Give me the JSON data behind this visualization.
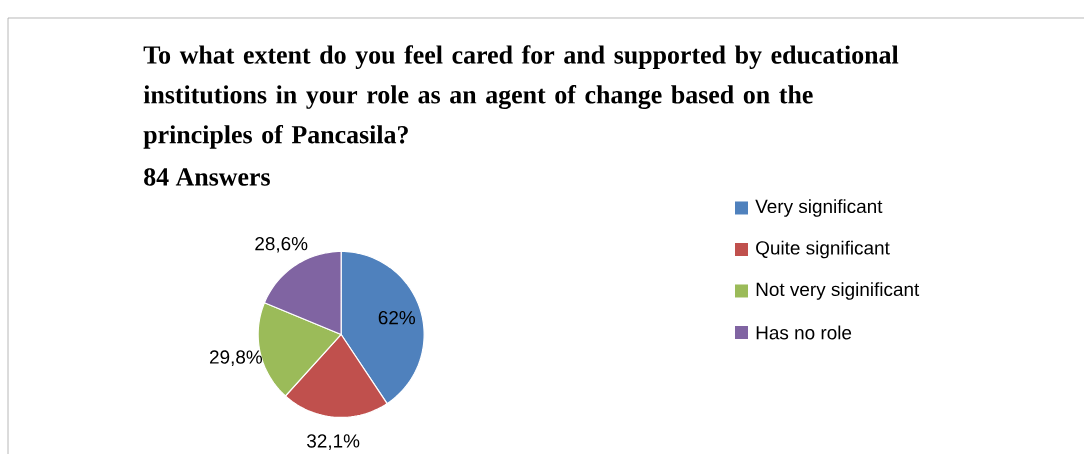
{
  "chart_data": {
    "type": "pie",
    "title": "To what extent do you feel cared for and supported by educational institutions in your role as an agent of change based on the principles of Pancasila?",
    "subtitle": "84 Answers",
    "categories": [
      "Very significant",
      "Quite significant",
      "Not very siginificant",
      "Has no role"
    ],
    "values": [
      62,
      32.1,
      29.8,
      28.6
    ],
    "value_labels": [
      "62%",
      "32,1%",
      "29,8%",
      "28,6%"
    ],
    "colors": [
      "#4f81bd",
      "#c0504d",
      "#9bbb59",
      "#8064a2"
    ],
    "legend": "right"
  }
}
